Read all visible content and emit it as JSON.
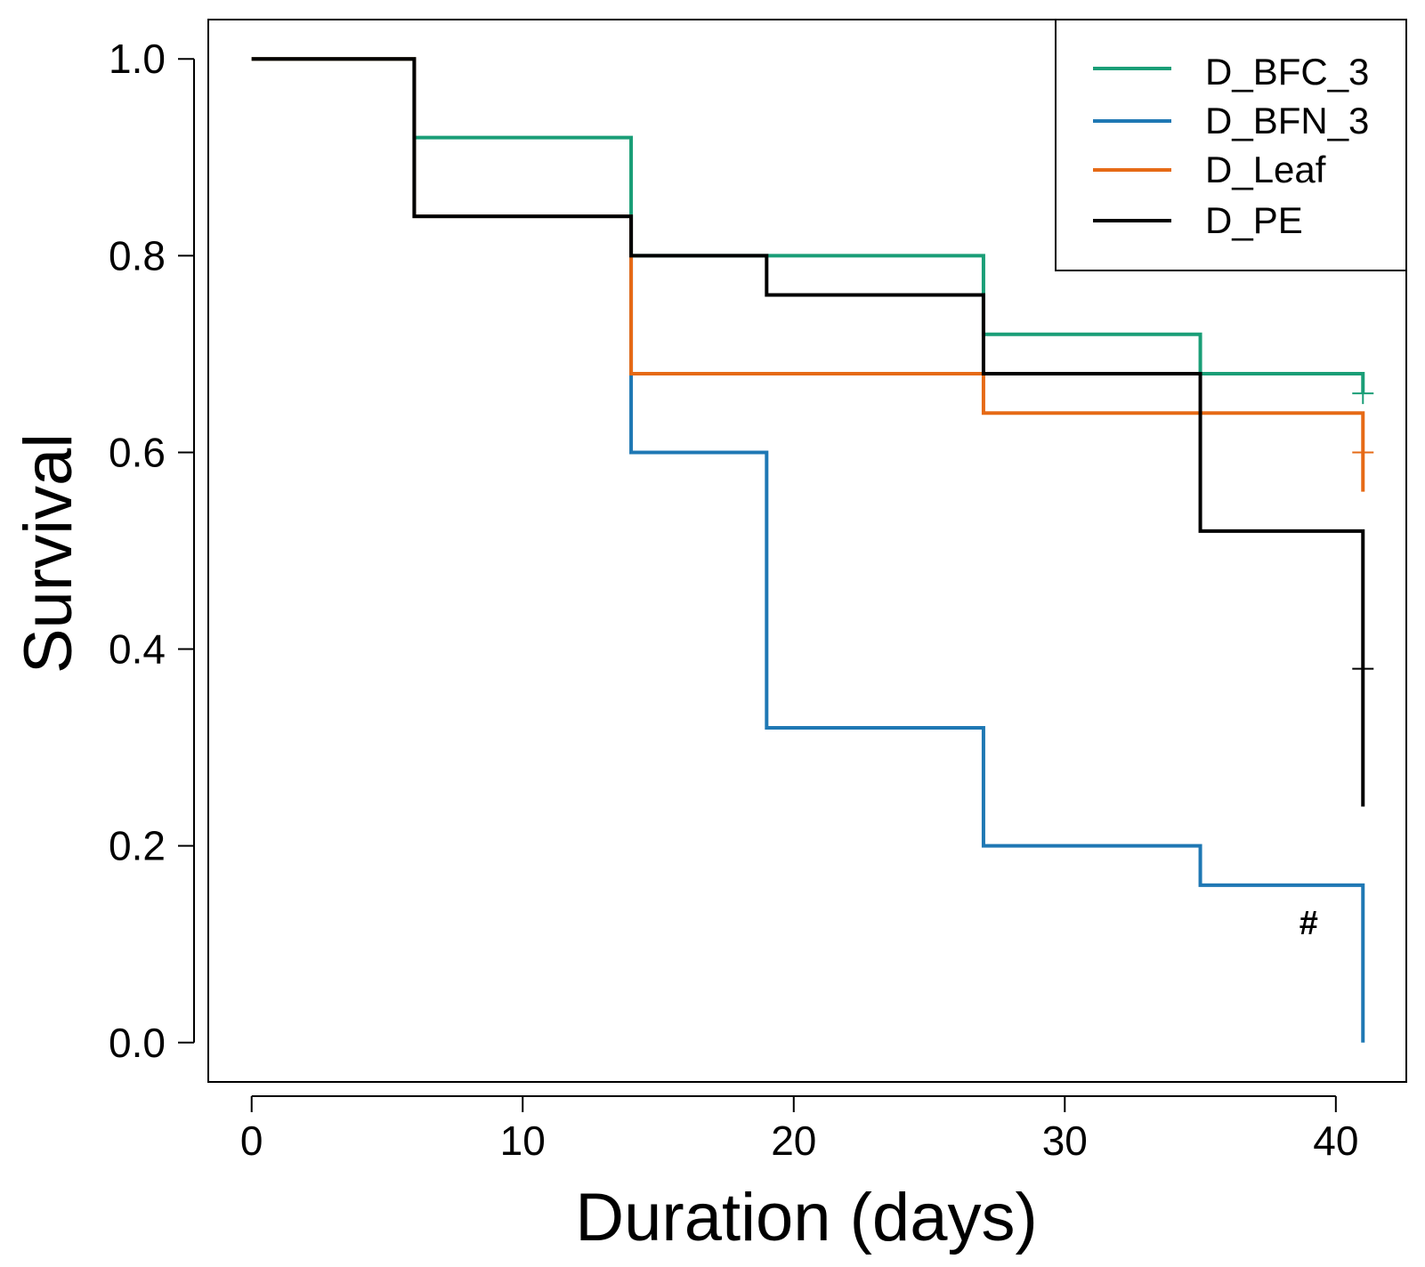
{
  "chart_data": {
    "type": "line",
    "subtype": "kaplan-meier-step",
    "title": "",
    "xlabel": "Duration (days)",
    "ylabel": "Survival",
    "xlim": [
      -1.6,
      42.6
    ],
    "ylim": [
      -0.04,
      1.04
    ],
    "xticks": [
      0,
      10,
      20,
      30,
      40
    ],
    "xtick_labels": [
      "0",
      "10",
      "20",
      "30",
      "40"
    ],
    "yticks": [
      0.0,
      0.2,
      0.4,
      0.6,
      0.8,
      1.0
    ],
    "ytick_labels": [
      "0.0",
      "0.2",
      "0.4",
      "0.6",
      "0.8",
      "1.0"
    ],
    "grid": false,
    "legend_position": "top-right",
    "annotations": [
      {
        "text": "#",
        "x": 39,
        "y": 0.11
      }
    ],
    "series": [
      {
        "name": "D_BFC_3",
        "color": "#1a9e77",
        "x": [
          0,
          6,
          14,
          19,
          27,
          35,
          41
        ],
        "y": [
          1.0,
          0.92,
          0.8,
          0.8,
          0.72,
          0.68,
          0.66
        ],
        "censor": [
          {
            "x": 41,
            "y": 0.66
          }
        ]
      },
      {
        "name": "D_BFN_3",
        "color": "#1f78b4",
        "x": [
          0,
          6,
          14,
          19,
          27,
          35,
          41
        ],
        "y": [
          1.0,
          0.84,
          0.6,
          0.32,
          0.2,
          0.16,
          0.0
        ],
        "censor": []
      },
      {
        "name": "D_Leaf",
        "color": "#e66a16",
        "x": [
          0,
          6,
          14,
          27,
          41
        ],
        "y": [
          1.0,
          0.84,
          0.68,
          0.64,
          0.56
        ],
        "censor": [
          {
            "x": 41,
            "y": 0.6
          }
        ]
      },
      {
        "name": "D_PE",
        "color": "#000000",
        "x": [
          0,
          6,
          14,
          19,
          27,
          35,
          41
        ],
        "y": [
          1.0,
          0.84,
          0.8,
          0.76,
          0.68,
          0.52,
          0.24
        ],
        "censor": [
          {
            "x": 41,
            "y": 0.38
          }
        ]
      }
    ]
  }
}
